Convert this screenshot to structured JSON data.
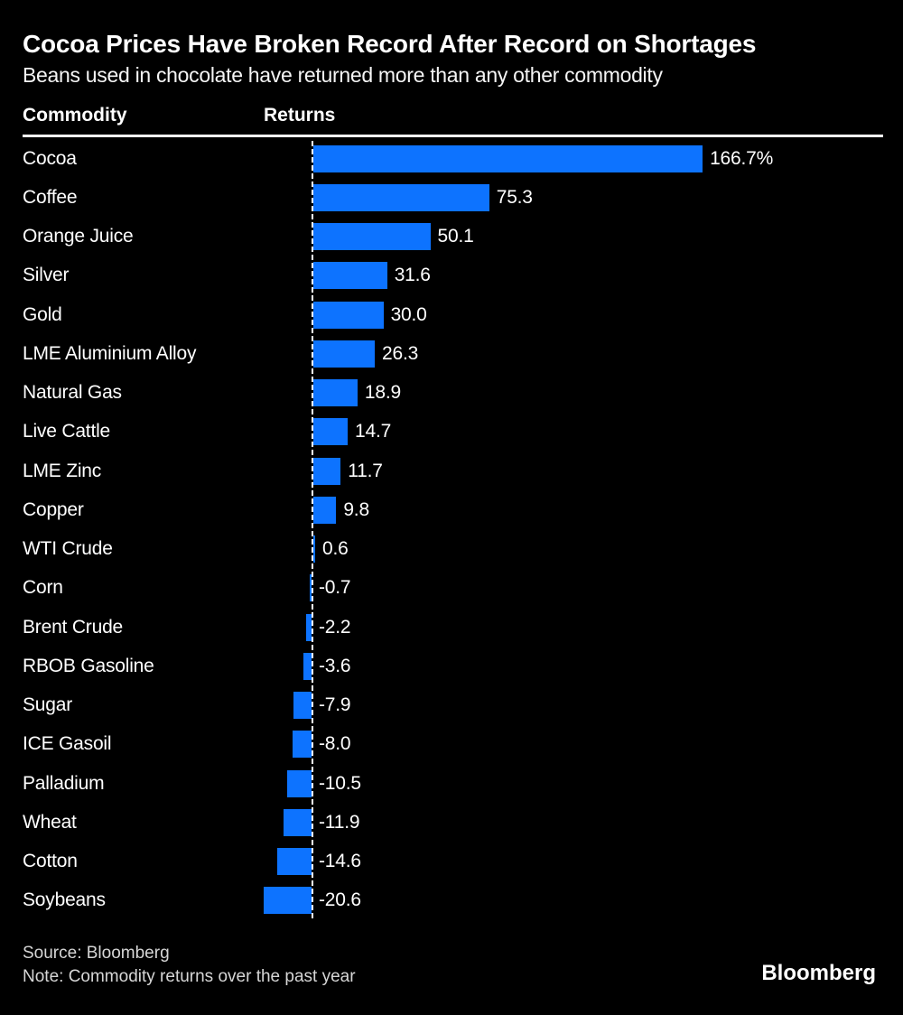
{
  "header": {
    "title": "Cocoa Prices Have Broken Record After Record on Shortages",
    "subtitle": "Beans used in chocolate have returned more than any other commodity",
    "col_commodity": "Commodity",
    "col_returns": "Returns"
  },
  "chart_data": {
    "type": "bar",
    "orientation": "horizontal",
    "title": "Cocoa Prices Have Broken Record After Record on Shortages",
    "subtitle": "Beans used in chocolate have returned more than any other commodity",
    "columns": [
      "Commodity",
      "Returns"
    ],
    "categories": [
      "Cocoa",
      "Coffee",
      "Orange Juice",
      "Silver",
      "Gold",
      "LME Aluminium Alloy",
      "Natural Gas",
      "Live Cattle",
      "LME Zinc",
      "Copper",
      "WTI Crude",
      "Corn",
      "Brent Crude",
      "RBOB Gasoline",
      "Sugar",
      "ICE Gasoil",
      "Palladium",
      "Wheat",
      "Cotton",
      "Soybeans"
    ],
    "values": [
      166.7,
      75.3,
      50.1,
      31.6,
      30.0,
      26.3,
      18.9,
      14.7,
      11.7,
      9.8,
      0.6,
      -0.7,
      -2.2,
      -3.6,
      -7.9,
      -8.0,
      -10.5,
      -11.9,
      -14.6,
      -20.6
    ],
    "value_labels": [
      "166.7%",
      "75.3",
      "50.1",
      "31.6",
      "30.0",
      "26.3",
      "18.9",
      "14.7",
      "11.7",
      "9.8",
      "0.6",
      "-0.7",
      "-2.2",
      "-3.6",
      "-7.9",
      "-8.0",
      "-10.5",
      "-11.9",
      "-14.6",
      "-20.6"
    ],
    "unit": "percent",
    "xlim": [
      -25,
      175
    ],
    "grid": false,
    "legend": "none",
    "baseline_value": 0,
    "bar_color": "#0d73ff",
    "baseline_style": "dashed-white"
  },
  "footer": {
    "source": "Source: Bloomberg",
    "note": "Note: Commodity returns over the past year",
    "logo": "Bloomberg"
  },
  "colors": {
    "background": "#000000",
    "bar": "#0d73ff",
    "text": "#ffffff",
    "footer_text": "#d6d6d6"
  }
}
